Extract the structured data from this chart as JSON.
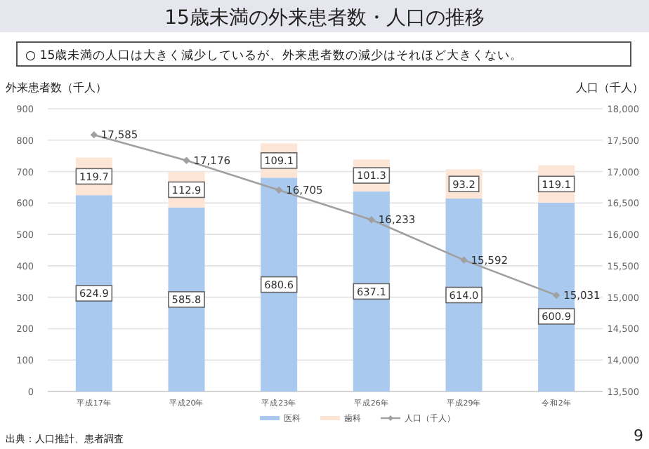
{
  "chart_data": {
    "type": "bar",
    "stacked": true,
    "title": "15歳未満の外来患者数・人口の推移",
    "subtitle": "○ 15歳未満の人口は大きく減少しているが、外来患者数の減少はそれほど大きくない。",
    "ylabel": "外来患者数（千人）",
    "y2label": "人口（千人）",
    "categories": [
      "平成17年",
      "平成20年",
      "平成23年",
      "平成26年",
      "平成29年",
      "令和2年"
    ],
    "series": [
      {
        "name": "医科",
        "color": "#a9c9ee",
        "values": [
          624.9,
          585.8,
          680.6,
          637.1,
          614.0,
          600.9
        ],
        "value_labels": [
          "624.9",
          "585.8",
          "680.6",
          "637.1",
          "614.0",
          "600.9"
        ]
      },
      {
        "name": "歯科",
        "color": "#fde5d5",
        "values": [
          119.7,
          112.9,
          109.1,
          101.3,
          93.2,
          119.1
        ],
        "value_labels": [
          "119.7",
          "112.9",
          "109.1",
          "101.3",
          "93.2",
          "119.1"
        ]
      },
      {
        "name": "人口（千人）",
        "type": "line",
        "axis": "y2",
        "color": "#a0a0a0",
        "marker": "diamond",
        "values": [
          17585,
          17176,
          16705,
          16233,
          15592,
          15031
        ],
        "value_labels": [
          "17,585",
          "17,176",
          "16,705",
          "16,233",
          "15,592",
          "15,031"
        ]
      }
    ],
    "ylim": [
      0,
      900
    ],
    "yticks": [
      0,
      100,
      200,
      300,
      400,
      500,
      600,
      700,
      800,
      900
    ],
    "y2lim": [
      13500,
      18000
    ],
    "y2ticks": [
      {
        "value": 13500,
        "label": "13,500"
      },
      {
        "value": 14000,
        "label": "14,000"
      },
      {
        "value": 14500,
        "label": "14,500"
      },
      {
        "value": 15000,
        "label": "15,000"
      },
      {
        "value": 15500,
        "label": "15,500"
      },
      {
        "value": 16000,
        "label": "16,000"
      },
      {
        "value": 16500,
        "label": "16,500"
      },
      {
        "value": 17000,
        "label": "17,000"
      },
      {
        "value": 17500,
        "label": "17,500"
      },
      {
        "value": 18000,
        "label": "18,000"
      }
    ],
    "grid": "y",
    "legend": "bottom",
    "annotations": [
      "出典：人口推計、患者調査",
      "9"
    ]
  }
}
